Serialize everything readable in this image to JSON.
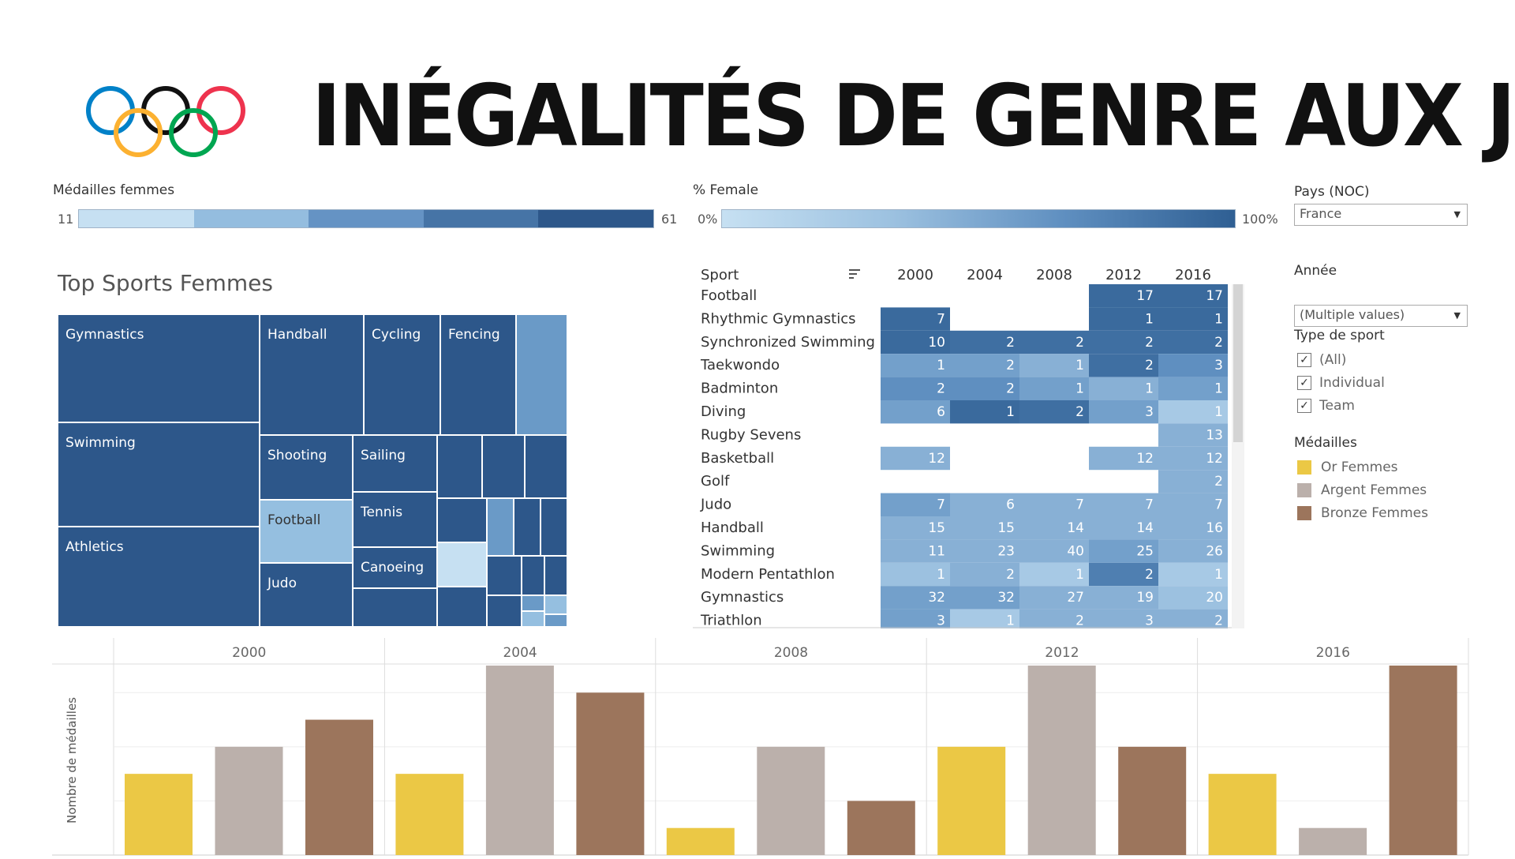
{
  "header": {
    "title": "INÉGALITÉS DE GENRE AUX JO",
    "logo": "olympic-rings-icon"
  },
  "legend_medals": {
    "title": "Médailles femmes",
    "min": "11",
    "max": "61",
    "colors": [
      "#c6e0f2",
      "#94bddf",
      "#6593c4",
      "#4674a6",
      "#2d578a"
    ]
  },
  "legend_female": {
    "title": "% Female",
    "min": "0%",
    "max": "100%"
  },
  "treemap": {
    "title": "Top Sports Femmes",
    "labels": [
      "Gymnastics",
      "Swimming",
      "Athletics",
      "Handball",
      "Cycling",
      "Fencing",
      "Shooting",
      "Sailing",
      "Football",
      "Tennis",
      "Judo",
      "Canoeing"
    ]
  },
  "table": {
    "header_sport": "Sport",
    "years": [
      "2000",
      "2004",
      "2008",
      "2012",
      "2016"
    ],
    "rows": [
      {
        "sport": "Football",
        "values": [
          "",
          "",
          "",
          "17",
          "17"
        ]
      },
      {
        "sport": "Rhythmic Gymnastics",
        "values": [
          "7",
          "",
          "",
          "1",
          "1"
        ]
      },
      {
        "sport": "Synchronized Swimming",
        "values": [
          "10",
          "2",
          "2",
          "2",
          "2"
        ]
      },
      {
        "sport": "Taekwondo",
        "values": [
          "1",
          "2",
          "1",
          "2",
          "3"
        ]
      },
      {
        "sport": "Badminton",
        "values": [
          "2",
          "2",
          "1",
          "1",
          "1"
        ]
      },
      {
        "sport": "Diving",
        "values": [
          "6",
          "1",
          "2",
          "3",
          "1"
        ]
      },
      {
        "sport": "Rugby Sevens",
        "values": [
          "",
          "",
          "",
          "",
          "13"
        ]
      },
      {
        "sport": "Basketball",
        "values": [
          "12",
          "",
          "",
          "12",
          "12"
        ]
      },
      {
        "sport": "Golf",
        "values": [
          "",
          "",
          "",
          "",
          "2"
        ]
      },
      {
        "sport": "Judo",
        "values": [
          "7",
          "6",
          "7",
          "7",
          "7"
        ]
      },
      {
        "sport": "Handball",
        "values": [
          "15",
          "15",
          "14",
          "14",
          "16"
        ]
      },
      {
        "sport": "Swimming",
        "values": [
          "11",
          "23",
          "40",
          "25",
          "26"
        ]
      },
      {
        "sport": "Modern Pentathlon",
        "values": [
          "1",
          "2",
          "1",
          "2",
          "1"
        ]
      },
      {
        "sport": "Gymnastics",
        "values": [
          "32",
          "32",
          "27",
          "19",
          "20"
        ]
      },
      {
        "sport": "Triathlon",
        "values": [
          "3",
          "1",
          "2",
          "3",
          "2"
        ]
      }
    ],
    "pct_female": [
      [
        null,
        null,
        null,
        90,
        90
      ],
      [
        90,
        null,
        null,
        90,
        90
      ],
      [
        90,
        85,
        85,
        85,
        85
      ],
      [
        50,
        50,
        45,
        85,
        55
      ],
      [
        55,
        55,
        50,
        45,
        50
      ],
      [
        50,
        90,
        85,
        50,
        30
      ],
      [
        null,
        null,
        null,
        null,
        45
      ],
      [
        45,
        null,
        null,
        45,
        45
      ],
      [
        null,
        null,
        null,
        null,
        45
      ],
      [
        50,
        45,
        45,
        45,
        45
      ],
      [
        45,
        45,
        45,
        45,
        45
      ],
      [
        45,
        45,
        45,
        50,
        45
      ],
      [
        40,
        45,
        30,
        70,
        30
      ],
      [
        50,
        50,
        45,
        45,
        40
      ],
      [
        50,
        30,
        45,
        45,
        45
      ]
    ]
  },
  "filters": {
    "country_label": "Pays (NOC)",
    "country_value": "France",
    "year_label": "Année",
    "year_value": "(Multiple values)",
    "sport_type_label": "Type de sport",
    "sport_type_options": [
      "(All)",
      "Individual",
      "Team"
    ],
    "medals_label": "Médailles",
    "medals": [
      {
        "name": "Or Femmes",
        "color": "#ebc845"
      },
      {
        "name": "Argent Femmes",
        "color": "#bbb0ab"
      },
      {
        "name": "Bronze Femmes",
        "color": "#9c755c"
      }
    ]
  },
  "chart_data": {
    "type": "bar",
    "ylabel": "Nombre de médailles",
    "categories": [
      "2000",
      "2004",
      "2008",
      "2012",
      "2016"
    ],
    "series": [
      {
        "name": "Or Femmes",
        "color": "#ebc845",
        "values": [
          3,
          3,
          1,
          4,
          3
        ]
      },
      {
        "name": "Argent Femmes",
        "color": "#bbb0ab",
        "values": [
          4,
          7,
          4,
          7,
          1
        ]
      },
      {
        "name": "Bronze Femmes",
        "color": "#9c755c",
        "values": [
          5,
          6,
          2,
          4,
          7
        ]
      }
    ],
    "ylim": [
      0,
      7
    ],
    "grid": true
  }
}
